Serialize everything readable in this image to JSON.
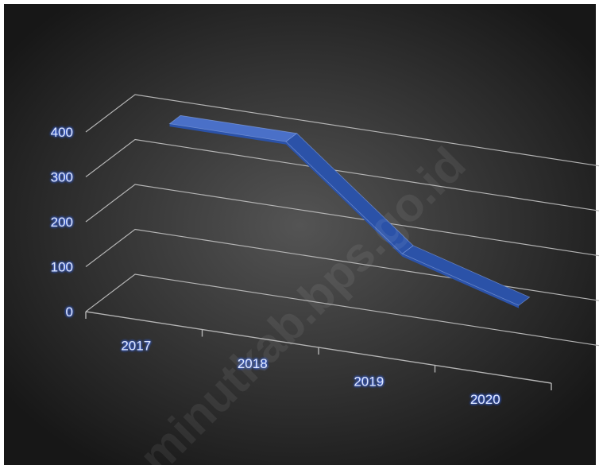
{
  "chart_data": {
    "type": "line",
    "style": "3d-ribbon",
    "title": "",
    "xlabel": "",
    "ylabel": "",
    "categories": [
      "2017",
      "2018",
      "2019",
      "2020"
    ],
    "series": [
      {
        "values": [
          395,
          395,
          185,
          110
        ]
      }
    ],
    "ylim": [
      0,
      400
    ],
    "yticks": [
      "0",
      "100",
      "200",
      "300",
      "400"
    ],
    "grid": true,
    "legend": "none"
  },
  "watermark": "minutkab.bps.go.id",
  "colors": {
    "ribbon_top": "#4a70c8",
    "ribbon_face": "#2b52a8",
    "grid": "#b4b4b4",
    "label": "#dbe6ff",
    "label_glow": "#3b6cff",
    "background_light": "#545454",
    "background_dark": "#171717"
  }
}
